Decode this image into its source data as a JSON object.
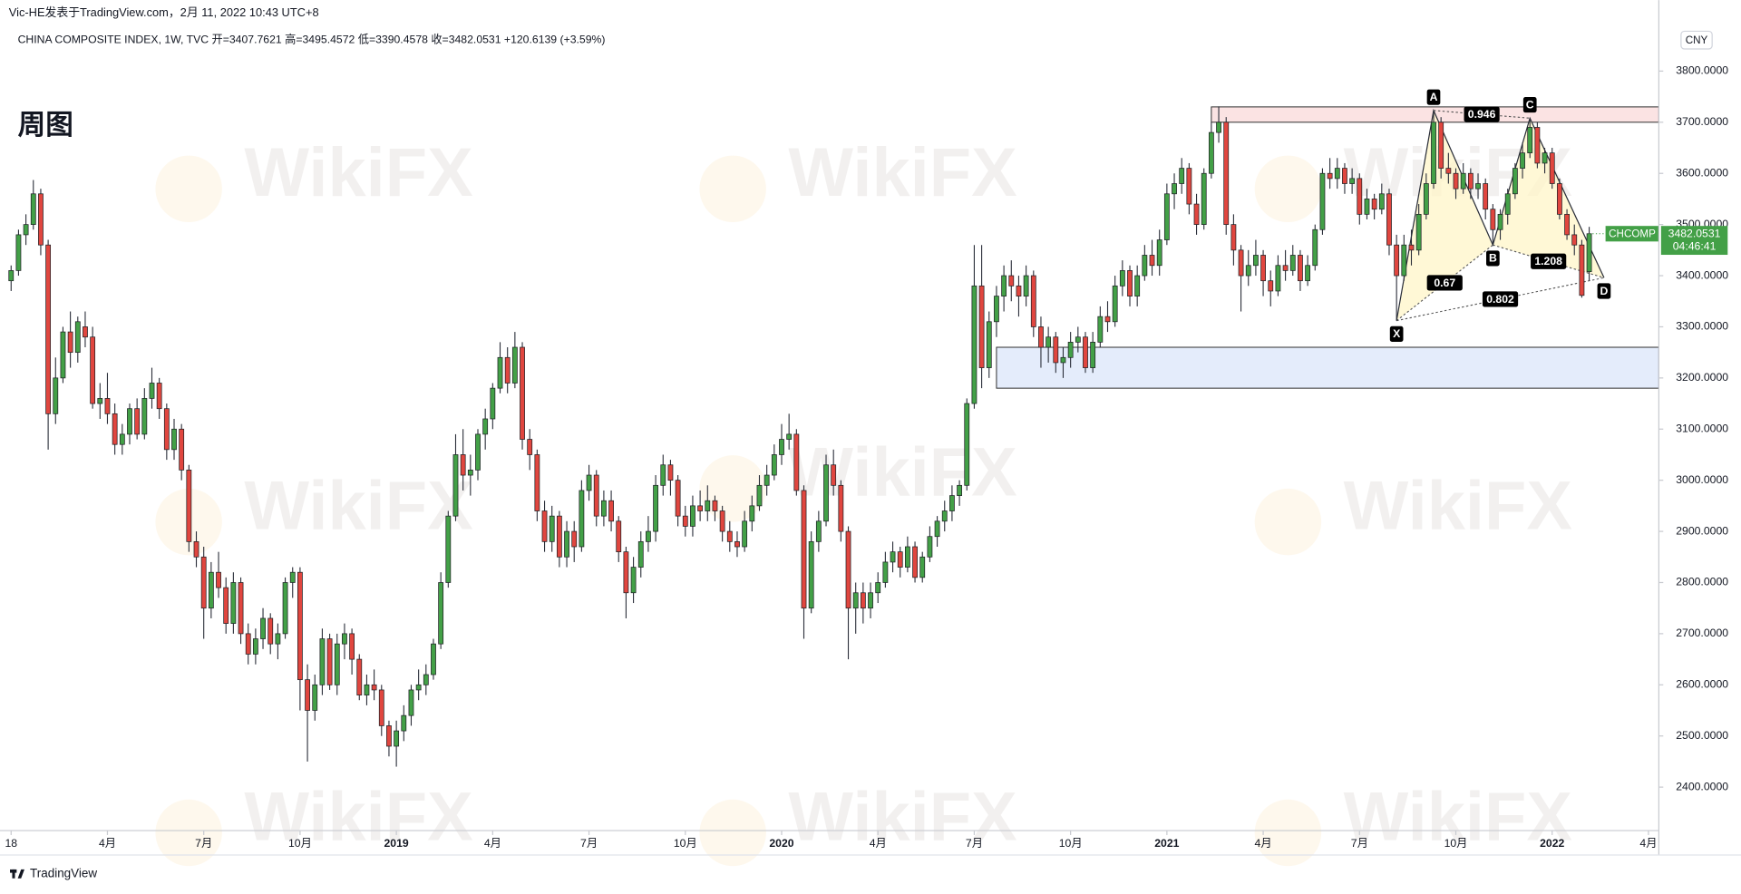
{
  "top_note": "Vic-HE发表于TradingView.com，2月 11, 2022 10:43 UTC+8",
  "chart_data": {
    "type": "candlestick",
    "symbol_header": "CHINA COMPOSITE INDEX, 1W, TVC  开=3407.7621 高=3495.4572 低=3390.4578 收=3482.0531 +120.6139 (+3.59%)",
    "title": "周图",
    "currency": "CNY",
    "ticker": "CHCOMP",
    "countdown": "04:46:41",
    "watermark": "WikiFX",
    "up_color": "#43a047",
    "down_color": "#e0463f",
    "xlim": [
      -1.5,
      222.4
    ],
    "ylim": [
      2315,
      3891
    ],
    "xticks": [
      {
        "value": 0,
        "label": "18"
      },
      {
        "value": 13,
        "label": "4月"
      },
      {
        "value": 26,
        "label": "7月"
      },
      {
        "value": 39,
        "label": "10月"
      },
      {
        "value": 52,
        "label": "2019"
      },
      {
        "value": 65,
        "label": "4月"
      },
      {
        "value": 78,
        "label": "7月"
      },
      {
        "value": 91,
        "label": "10月"
      },
      {
        "value": 104,
        "label": "2020"
      },
      {
        "value": 117,
        "label": "4月"
      },
      {
        "value": 130,
        "label": "7月"
      },
      {
        "value": 143,
        "label": "10月"
      },
      {
        "value": 156,
        "label": "2021"
      },
      {
        "value": 169,
        "label": "4月"
      },
      {
        "value": 182,
        "label": "7月"
      },
      {
        "value": 195,
        "label": "10月"
      },
      {
        "value": 208,
        "label": "2022"
      },
      {
        "value": 221,
        "label": "4月"
      }
    ],
    "yticks": [
      {
        "value": 2400,
        "label": "2400.0000"
      },
      {
        "value": 2500,
        "label": "2500.0000"
      },
      {
        "value": 2600,
        "label": "2600.0000"
      },
      {
        "value": 2700,
        "label": "2700.0000"
      },
      {
        "value": 2800,
        "label": "2800.0000"
      },
      {
        "value": 2900,
        "label": "2900.0000"
      },
      {
        "value": 3000,
        "label": "3000.0000"
      },
      {
        "value": 3100,
        "label": "3100.0000"
      },
      {
        "value": 3200,
        "label": "3200.0000"
      },
      {
        "value": 3300,
        "label": "3300.0000"
      },
      {
        "value": 3400,
        "label": "3400.0000"
      },
      {
        "value": 3500,
        "label": "3500.0000"
      },
      {
        "value": 3600,
        "label": "3600.0000"
      },
      {
        "value": 3700,
        "label": "3700.0000"
      },
      {
        "value": 3800,
        "label": "3800.0000"
      }
    ],
    "zones": [
      {
        "from": 162,
        "low": 3700,
        "high": 3730,
        "color": "#fbe3e3"
      },
      {
        "from": 133,
        "low": 3180,
        "high": 3260,
        "color": "#e4ecfb"
      }
    ],
    "pattern": {
      "points": [
        {
          "label": "X",
          "x": 187,
          "y": 3312
        },
        {
          "label": "A",
          "x": 192,
          "y": 3723
        },
        {
          "label": "B",
          "x": 200,
          "y": 3460
        },
        {
          "label": "C",
          "x": 205,
          "y": 3708
        },
        {
          "label": "D",
          "x": 215,
          "y": 3396
        }
      ],
      "ratios": [
        0.67,
        0.946,
        1.208,
        0.802
      ]
    },
    "candles": [
      [
        3390,
        3420,
        3370,
        3410
      ],
      [
        3410,
        3490,
        3400,
        3480
      ],
      [
        3480,
        3520,
        3460,
        3500
      ],
      [
        3500,
        3587,
        3490,
        3560
      ],
      [
        3560,
        3570,
        3440,
        3460
      ],
      [
        3460,
        3470,
        3060,
        3130
      ],
      [
        3130,
        3240,
        3110,
        3200
      ],
      [
        3200,
        3300,
        3190,
        3290
      ],
      [
        3290,
        3330,
        3220,
        3250
      ],
      [
        3250,
        3320,
        3230,
        3310
      ],
      [
        3300,
        3330,
        3260,
        3280
      ],
      [
        3280,
        3300,
        3140,
        3150
      ],
      [
        3150,
        3190,
        3120,
        3160
      ],
      [
        3160,
        3210,
        3110,
        3130
      ],
      [
        3130,
        3150,
        3050,
        3070
      ],
      [
        3070,
        3110,
        3050,
        3090
      ],
      [
        3090,
        3150,
        3070,
        3140
      ],
      [
        3140,
        3160,
        3080,
        3090
      ],
      [
        3090,
        3180,
        3080,
        3160
      ],
      [
        3160,
        3220,
        3140,
        3190
      ],
      [
        3190,
        3200,
        3120,
        3140
      ],
      [
        3140,
        3150,
        3040,
        3060
      ],
      [
        3060,
        3120,
        3040,
        3100
      ],
      [
        3100,
        3110,
        3000,
        3020
      ],
      [
        3020,
        3030,
        2860,
        2880
      ],
      [
        2880,
        2900,
        2830,
        2850
      ],
      [
        2850,
        2870,
        2690,
        2750
      ],
      [
        2750,
        2840,
        2730,
        2820
      ],
      [
        2820,
        2860,
        2770,
        2790
      ],
      [
        2790,
        2810,
        2700,
        2720
      ],
      [
        2720,
        2820,
        2700,
        2800
      ],
      [
        2800,
        2810,
        2680,
        2700
      ],
      [
        2700,
        2720,
        2640,
        2660
      ],
      [
        2660,
        2710,
        2640,
        2690
      ],
      [
        2690,
        2750,
        2670,
        2730
      ],
      [
        2730,
        2740,
        2660,
        2680
      ],
      [
        2680,
        2720,
        2650,
        2700
      ],
      [
        2700,
        2810,
        2690,
        2800
      ],
      [
        2800,
        2830,
        2770,
        2820
      ],
      [
        2820,
        2830,
        2550,
        2610
      ],
      [
        2610,
        2640,
        2450,
        2550
      ],
      [
        2550,
        2620,
        2530,
        2600
      ],
      [
        2600,
        2710,
        2580,
        2690
      ],
      [
        2690,
        2700,
        2590,
        2600
      ],
      [
        2600,
        2700,
        2580,
        2680
      ],
      [
        2680,
        2720,
        2650,
        2700
      ],
      [
        2700,
        2710,
        2620,
        2650
      ],
      [
        2650,
        2660,
        2570,
        2580
      ],
      [
        2580,
        2620,
        2560,
        2600
      ],
      [
        2600,
        2630,
        2570,
        2590
      ],
      [
        2590,
        2600,
        2500,
        2520
      ],
      [
        2520,
        2530,
        2460,
        2480
      ],
      [
        2480,
        2530,
        2440,
        2510
      ],
      [
        2510,
        2560,
        2490,
        2540
      ],
      [
        2540,
        2600,
        2520,
        2590
      ],
      [
        2590,
        2630,
        2570,
        2600
      ],
      [
        2600,
        2640,
        2580,
        2620
      ],
      [
        2620,
        2690,
        2610,
        2680
      ],
      [
        2680,
        2820,
        2670,
        2800
      ],
      [
        2800,
        2940,
        2790,
        2930
      ],
      [
        2930,
        3090,
        2920,
        3050
      ],
      [
        3050,
        3100,
        2980,
        3010
      ],
      [
        3010,
        3050,
        2970,
        3020
      ],
      [
        3020,
        3100,
        3000,
        3090
      ],
      [
        3090,
        3140,
        3060,
        3120
      ],
      [
        3120,
        3190,
        3100,
        3180
      ],
      [
        3180,
        3270,
        3170,
        3240
      ],
      [
        3240,
        3260,
        3170,
        3190
      ],
      [
        3190,
        3290,
        3180,
        3260
      ],
      [
        3260,
        3270,
        3060,
        3080
      ],
      [
        3080,
        3100,
        3020,
        3050
      ],
      [
        3050,
        3060,
        2920,
        2940
      ],
      [
        2940,
        2960,
        2860,
        2880
      ],
      [
        2880,
        2950,
        2860,
        2930
      ],
      [
        2930,
        2940,
        2830,
        2850
      ],
      [
        2850,
        2920,
        2830,
        2900
      ],
      [
        2900,
        2920,
        2840,
        2870
      ],
      [
        2870,
        3000,
        2860,
        2980
      ],
      [
        2980,
        3030,
        2960,
        3010
      ],
      [
        3010,
        3020,
        2910,
        2930
      ],
      [
        2930,
        2980,
        2910,
        2960
      ],
      [
        2960,
        2980,
        2900,
        2920
      ],
      [
        2920,
        2930,
        2840,
        2860
      ],
      [
        2860,
        2870,
        2730,
        2780
      ],
      [
        2780,
        2850,
        2760,
        2830
      ],
      [
        2830,
        2900,
        2810,
        2880
      ],
      [
        2880,
        2930,
        2860,
        2900
      ],
      [
        2900,
        3010,
        2880,
        2990
      ],
      [
        2990,
        3050,
        2970,
        3030
      ],
      [
        3030,
        3040,
        2970,
        3000
      ],
      [
        3000,
        3010,
        2910,
        2930
      ],
      [
        2930,
        2950,
        2890,
        2910
      ],
      [
        2910,
        2970,
        2890,
        2950
      ],
      [
        2950,
        2980,
        2920,
        2940
      ],
      [
        2940,
        2990,
        2920,
        2960
      ],
      [
        2960,
        2970,
        2920,
        2940
      ],
      [
        2940,
        2950,
        2880,
        2900
      ],
      [
        2900,
        2920,
        2860,
        2880
      ],
      [
        2880,
        2900,
        2850,
        2870
      ],
      [
        2870,
        2940,
        2860,
        2920
      ],
      [
        2920,
        2970,
        2900,
        2950
      ],
      [
        2950,
        3010,
        2940,
        2990
      ],
      [
        2990,
        3030,
        2970,
        3010
      ],
      [
        3010,
        3070,
        3000,
        3050
      ],
      [
        3050,
        3110,
        3030,
        3080
      ],
      [
        3080,
        3130,
        3060,
        3090
      ],
      [
        3090,
        3100,
        2970,
        2980
      ],
      [
        2980,
        2990,
        2690,
        2750
      ],
      [
        2750,
        2900,
        2740,
        2880
      ],
      [
        2880,
        2940,
        2860,
        2920
      ],
      [
        2920,
        3050,
        2910,
        3030
      ],
      [
        3030,
        3060,
        2970,
        2990
      ],
      [
        2990,
        3000,
        2880,
        2900
      ],
      [
        2900,
        2910,
        2650,
        2750
      ],
      [
        2750,
        2800,
        2700,
        2780
      ],
      [
        2780,
        2800,
        2720,
        2750
      ],
      [
        2750,
        2800,
        2730,
        2780
      ],
      [
        2780,
        2820,
        2760,
        2800
      ],
      [
        2800,
        2860,
        2790,
        2840
      ],
      [
        2840,
        2880,
        2820,
        2860
      ],
      [
        2860,
        2870,
        2810,
        2830
      ],
      [
        2830,
        2890,
        2820,
        2870
      ],
      [
        2870,
        2880,
        2800,
        2810
      ],
      [
        2810,
        2860,
        2800,
        2850
      ],
      [
        2850,
        2910,
        2840,
        2890
      ],
      [
        2890,
        2930,
        2870,
        2920
      ],
      [
        2920,
        2960,
        2900,
        2940
      ],
      [
        2940,
        2990,
        2920,
        2970
      ],
      [
        2970,
        3000,
        2950,
        2990
      ],
      [
        2990,
        3160,
        2980,
        3150
      ],
      [
        3150,
        3460,
        3140,
        3380
      ],
      [
        3380,
        3460,
        3180,
        3220
      ],
      [
        3220,
        3330,
        3200,
        3310
      ],
      [
        3310,
        3380,
        3280,
        3360
      ],
      [
        3360,
        3420,
        3330,
        3400
      ],
      [
        3400,
        3430,
        3350,
        3380
      ],
      [
        3380,
        3400,
        3320,
        3360
      ],
      [
        3360,
        3420,
        3340,
        3400
      ],
      [
        3400,
        3410,
        3280,
        3300
      ],
      [
        3300,
        3320,
        3220,
        3260
      ],
      [
        3260,
        3300,
        3230,
        3280
      ],
      [
        3280,
        3290,
        3210,
        3230
      ],
      [
        3230,
        3260,
        3200,
        3240
      ],
      [
        3240,
        3290,
        3220,
        3270
      ],
      [
        3270,
        3300,
        3250,
        3280
      ],
      [
        3280,
        3290,
        3210,
        3220
      ],
      [
        3220,
        3290,
        3210,
        3270
      ],
      [
        3270,
        3340,
        3260,
        3320
      ],
      [
        3320,
        3350,
        3290,
        3310
      ],
      [
        3310,
        3400,
        3300,
        3380
      ],
      [
        3380,
        3430,
        3360,
        3410
      ],
      [
        3410,
        3420,
        3340,
        3360
      ],
      [
        3360,
        3420,
        3340,
        3400
      ],
      [
        3400,
        3460,
        3390,
        3440
      ],
      [
        3440,
        3470,
        3400,
        3420
      ],
      [
        3420,
        3490,
        3400,
        3470
      ],
      [
        3470,
        3580,
        3460,
        3560
      ],
      [
        3560,
        3600,
        3530,
        3580
      ],
      [
        3580,
        3630,
        3560,
        3610
      ],
      [
        3610,
        3620,
        3520,
        3540
      ],
      [
        3540,
        3560,
        3480,
        3500
      ],
      [
        3500,
        3610,
        3490,
        3600
      ],
      [
        3600,
        3700,
        3590,
        3680
      ],
      [
        3680,
        3731,
        3660,
        3700
      ],
      [
        3700,
        3710,
        3480,
        3500
      ],
      [
        3500,
        3520,
        3420,
        3450
      ],
      [
        3450,
        3460,
        3330,
        3400
      ],
      [
        3400,
        3450,
        3380,
        3420
      ],
      [
        3420,
        3470,
        3400,
        3440
      ],
      [
        3440,
        3450,
        3360,
        3390
      ],
      [
        3390,
        3410,
        3340,
        3370
      ],
      [
        3370,
        3440,
        3360,
        3420
      ],
      [
        3420,
        3450,
        3390,
        3410
      ],
      [
        3410,
        3460,
        3400,
        3440
      ],
      [
        3440,
        3450,
        3370,
        3390
      ],
      [
        3390,
        3440,
        3380,
        3420
      ],
      [
        3420,
        3500,
        3410,
        3490
      ],
      [
        3490,
        3610,
        3480,
        3600
      ],
      [
        3600,
        3630,
        3570,
        3590
      ],
      [
        3590,
        3630,
        3570,
        3610
      ],
      [
        3610,
        3620,
        3560,
        3580
      ],
      [
        3580,
        3610,
        3560,
        3590
      ],
      [
        3590,
        3600,
        3500,
        3520
      ],
      [
        3520,
        3570,
        3510,
        3550
      ],
      [
        3550,
        3560,
        3510,
        3530
      ],
      [
        3530,
        3580,
        3520,
        3560
      ],
      [
        3560,
        3570,
        3440,
        3460
      ],
      [
        3460,
        3480,
        3312,
        3400
      ],
      [
        3400,
        3480,
        3390,
        3460
      ],
      [
        3460,
        3490,
        3420,
        3450
      ],
      [
        3450,
        3540,
        3440,
        3520
      ],
      [
        3520,
        3600,
        3510,
        3580
      ],
      [
        3580,
        3723,
        3570,
        3700
      ],
      [
        3700,
        3710,
        3590,
        3610
      ],
      [
        3610,
        3640,
        3580,
        3600
      ],
      [
        3600,
        3610,
        3550,
        3570
      ],
      [
        3570,
        3620,
        3560,
        3600
      ],
      [
        3600,
        3610,
        3550,
        3570
      ],
      [
        3570,
        3600,
        3550,
        3580
      ],
      [
        3580,
        3590,
        3510,
        3530
      ],
      [
        3530,
        3540,
        3460,
        3490
      ],
      [
        3490,
        3530,
        3470,
        3520
      ],
      [
        3520,
        3570,
        3500,
        3560
      ],
      [
        3560,
        3620,
        3550,
        3610
      ],
      [
        3610,
        3660,
        3590,
        3640
      ],
      [
        3640,
        3708,
        3630,
        3690
      ],
      [
        3690,
        3700,
        3610,
        3620
      ],
      [
        3620,
        3650,
        3600,
        3640
      ],
      [
        3640,
        3650,
        3570,
        3580
      ],
      [
        3580,
        3590,
        3510,
        3520
      ],
      [
        3520,
        3530,
        3470,
        3480
      ],
      [
        3480,
        3500,
        3440,
        3460
      ],
      [
        3460,
        3470,
        3357,
        3361.4392
      ],
      [
        3407.7621,
        3495.4572,
        3390.4578,
        3482.0531
      ]
    ]
  },
  "footer": {
    "brand": "TradingView"
  }
}
